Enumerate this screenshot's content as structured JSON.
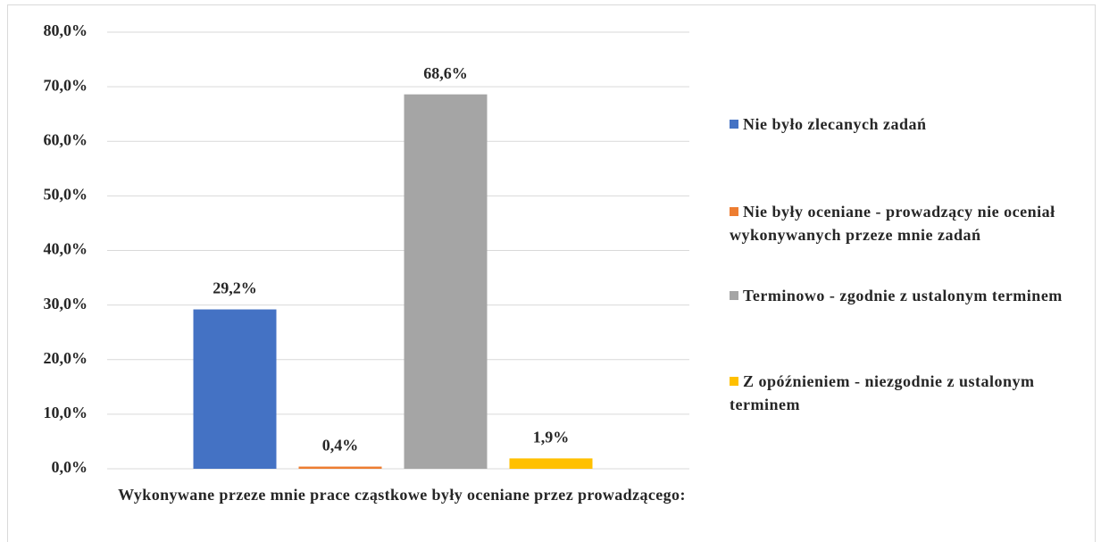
{
  "chart_data": {
    "type": "bar",
    "categories": [
      "Wykonywane przeze mnie prace cząstkowe były oceniane przez prowadzącego:"
    ],
    "series": [
      {
        "name": "Nie było zlecanych zadań",
        "color": "#4472c4",
        "values": [
          29.2
        ],
        "value_labels": [
          "29,2%"
        ]
      },
      {
        "name": "Nie były oceniane - prowadzący nie oceniał wykonywanych przeze mnie zadań",
        "color": "#ed7d31",
        "values": [
          0.4
        ],
        "value_labels": [
          "0,4%"
        ]
      },
      {
        "name": "Terminowo - zgodnie z ustalonym terminem",
        "color": "#a5a5a5",
        "values": [
          68.6
        ],
        "value_labels": [
          "68,6%"
        ]
      },
      {
        "name": "Z opóźnieniem - niezgodnie z ustalonym terminem",
        "color": "#ffc000",
        "values": [
          1.9
        ],
        "value_labels": [
          "1,9%"
        ]
      }
    ],
    "ylim": [
      0,
      80
    ],
    "yticks": [
      {
        "value": 0,
        "label": "0,0%"
      },
      {
        "value": 10,
        "label": "10,0%"
      },
      {
        "value": 20,
        "label": "20,0%"
      },
      {
        "value": 30,
        "label": "30,0%"
      },
      {
        "value": 40,
        "label": "40,0%"
      },
      {
        "value": 50,
        "label": "50,0%"
      },
      {
        "value": 60,
        "label": "60,0%"
      },
      {
        "value": 70,
        "label": "70,0%"
      },
      {
        "value": 80,
        "label": "80,0%"
      }
    ],
    "grid": true,
    "legend": "right"
  }
}
